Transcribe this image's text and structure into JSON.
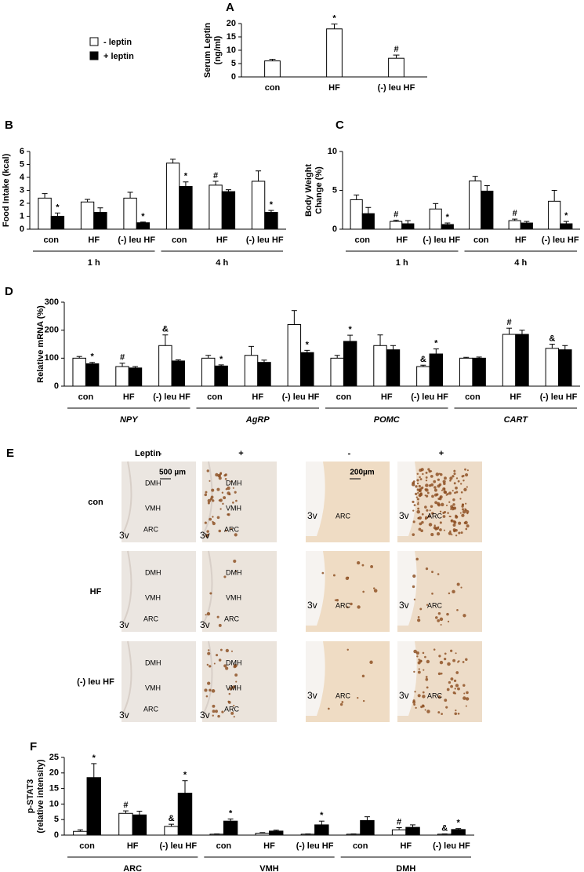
{
  "legend": [
    "- leptin",
    "+ leptin"
  ],
  "chart_data": [
    {
      "type": "bar",
      "title": "A",
      "ylabel": [
        "Serum Leptin",
        "(ng/ml)"
      ],
      "categories": [
        "con",
        "HF",
        "(-) leu HF"
      ],
      "values": [
        6,
        18,
        7
      ],
      "errors": [
        0.6,
        1.8,
        1.2
      ],
      "markers": [
        null,
        "*",
        "#"
      ],
      "color": "#ffffff",
      "ylim": [
        0,
        20
      ],
      "yticks": [
        0,
        5,
        10,
        15,
        20
      ]
    },
    {
      "type": "grouped_bar",
      "title": "B",
      "ylabel": [
        "Food Intake (kcal)"
      ],
      "categories": [
        "con",
        "HF",
        "(-) leu HF",
        "con",
        "HF",
        "(-) leu HF"
      ],
      "groups": [
        "1 h",
        "4 h"
      ],
      "series": [
        {
          "name": "- leptin",
          "color": "#ffffff",
          "values": [
            2.4,
            2.1,
            2.4,
            5.1,
            3.4,
            3.7
          ],
          "errors": [
            0.35,
            0.2,
            0.45,
            0.3,
            0.3,
            0.8
          ],
          "markers": [
            null,
            null,
            null,
            null,
            "#",
            null
          ]
        },
        {
          "name": "+ leptin",
          "color": "#000000",
          "values": [
            1.0,
            1.3,
            0.5,
            3.3,
            2.9,
            1.3
          ],
          "errors": [
            0.25,
            0.35,
            0.05,
            0.35,
            0.15,
            0.15
          ],
          "markers": [
            "*",
            null,
            "*",
            "*",
            null,
            "*"
          ]
        }
      ],
      "ylim": [
        0,
        6
      ],
      "yticks": [
        0,
        1,
        2,
        3,
        4,
        5,
        6
      ]
    },
    {
      "type": "grouped_bar",
      "title": "C",
      "ylabel": [
        "Body Weight",
        "Change (%)"
      ],
      "categories": [
        "con",
        "HF",
        "(-) leu HF",
        "con",
        "HF",
        "(-) leu HF"
      ],
      "groups": [
        "1 h",
        "4 h"
      ],
      "series": [
        {
          "name": "- leptin",
          "color": "#ffffff",
          "values": [
            3.8,
            1.0,
            2.6,
            6.2,
            1.1,
            3.6
          ],
          "errors": [
            0.6,
            0.15,
            0.7,
            0.6,
            0.2,
            1.4
          ],
          "markers": [
            null,
            "#",
            null,
            null,
            "#",
            null
          ]
        },
        {
          "name": "+ leptin",
          "color": "#000000",
          "values": [
            2.0,
            0.7,
            0.6,
            4.9,
            0.8,
            0.7
          ],
          "errors": [
            0.8,
            0.4,
            0.2,
            0.7,
            0.2,
            0.3
          ],
          "markers": [
            null,
            null,
            "*",
            null,
            null,
            "*"
          ]
        }
      ],
      "ylim": [
        0,
        10
      ],
      "yticks": [
        0,
        5,
        10
      ]
    },
    {
      "type": "grouped_bar",
      "title": "D",
      "ylabel": [
        "Relative mRNA (%)"
      ],
      "group_style": "italic",
      "categories": [
        "con",
        "HF",
        "(-) leu HF",
        "con",
        "HF",
        "(-) leu HF",
        "con",
        "HF",
        "(-) leu HF",
        "con",
        "HF",
        "(-) leu HF"
      ],
      "groups": [
        "NPY",
        "AgRP",
        "POMC",
        "CART"
      ],
      "series": [
        {
          "name": "- leptin",
          "color": "#ffffff",
          "values": [
            100,
            70,
            145,
            100,
            110,
            220,
            100,
            145,
            70,
            100,
            185,
            135
          ],
          "errors": [
            6,
            12,
            38,
            10,
            32,
            50,
            10,
            38,
            5,
            3,
            22,
            15
          ],
          "markers": [
            null,
            "#",
            "&",
            null,
            null,
            null,
            null,
            null,
            "&",
            null,
            "#",
            "&"
          ]
        },
        {
          "name": "+ leptin",
          "color": "#000000",
          "values": [
            80,
            65,
            90,
            72,
            85,
            120,
            160,
            130,
            115,
            100,
            185,
            130
          ],
          "errors": [
            5,
            5,
            4,
            4,
            8,
            8,
            22,
            15,
            18,
            4,
            15,
            15
          ],
          "markers": [
            "*",
            null,
            null,
            "*",
            null,
            "*",
            "*",
            null,
            "*",
            null,
            null,
            null
          ]
        }
      ],
      "ylim": [
        0,
        300
      ],
      "yticks": [
        0,
        100,
        200,
        300
      ]
    },
    {
      "type": "grouped_bar",
      "title": "F",
      "ylabel": [
        "p-STAT3",
        "(relative intensity)"
      ],
      "categories": [
        "con",
        "HF",
        "(-) leu HF",
        "con",
        "HF",
        "(-) leu HF",
        "con",
        "HF",
        "(-) leu HF"
      ],
      "groups": [
        "ARC",
        "VMH",
        "DMH"
      ],
      "series": [
        {
          "name": "- leptin",
          "color": "#ffffff",
          "values": [
            1.2,
            7,
            2.8,
            0.3,
            0.6,
            0.3,
            0.3,
            1.7,
            0.3
          ],
          "errors": [
            0.5,
            0.8,
            0.7,
            0.1,
            0.2,
            0.1,
            0.1,
            0.7,
            0.1
          ],
          "markers": [
            null,
            "#",
            "&",
            null,
            null,
            null,
            null,
            "#",
            "&"
          ]
        },
        {
          "name": "+ leptin",
          "color": "#000000",
          "values": [
            18.5,
            6.5,
            13.5,
            4.5,
            1.3,
            3.3,
            4.7,
            2.5,
            1.8
          ],
          "errors": [
            4.5,
            1.2,
            4,
            0.7,
            0.3,
            1.2,
            1.2,
            0.8,
            0.3
          ],
          "markers": [
            "*",
            null,
            "*",
            "*",
            null,
            "*",
            null,
            null,
            "*"
          ]
        }
      ],
      "ylim": [
        0,
        25
      ],
      "yticks": [
        0,
        5,
        10,
        15,
        20,
        25
      ]
    }
  ],
  "micrographs": {
    "label": "E",
    "header": "Leptin",
    "columns": [
      "-",
      "+",
      "-",
      "+"
    ],
    "rows": [
      "con",
      "HF",
      "(-) leu HF"
    ],
    "scale_bars": [
      "500 µm",
      "200µm"
    ],
    "regions": [
      "DMH",
      "VMH",
      "ARC",
      "3v"
    ]
  }
}
